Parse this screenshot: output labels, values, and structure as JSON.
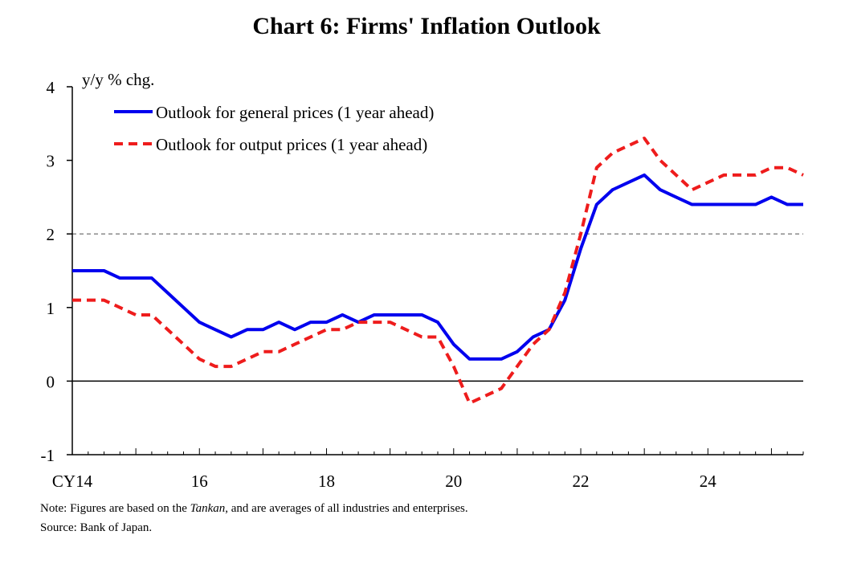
{
  "chart_data": {
    "type": "line",
    "title": "Chart 6: Firms' Inflation Outlook",
    "ylabel": "y/y % chg.",
    "xlabel": "",
    "ylim": [
      -1,
      4
    ],
    "yticks": [
      -1,
      0,
      1,
      2,
      3,
      4
    ],
    "xlim": [
      2014.0,
      2025.5
    ],
    "xticks": [
      {
        "value": 2014,
        "label": "CY14"
      },
      {
        "value": 2016,
        "label": "16"
      },
      {
        "value": 2018,
        "label": "18"
      },
      {
        "value": 2020,
        "label": "20"
      },
      {
        "value": 2022,
        "label": "22"
      },
      {
        "value": 2024,
        "label": "24"
      }
    ],
    "reference_line": {
      "value": 2,
      "style": "dashed",
      "color": "#8a8a8a"
    },
    "zero_line": {
      "value": 0
    },
    "legend_position": "top-left",
    "x": [
      2014.0,
      2014.25,
      2014.5,
      2014.75,
      2015.0,
      2015.25,
      2015.5,
      2015.75,
      2016.0,
      2016.25,
      2016.5,
      2016.75,
      2017.0,
      2017.25,
      2017.5,
      2017.75,
      2018.0,
      2018.25,
      2018.5,
      2018.75,
      2019.0,
      2019.25,
      2019.5,
      2019.75,
      2020.0,
      2020.25,
      2020.5,
      2020.75,
      2021.0,
      2021.25,
      2021.5,
      2021.75,
      2022.0,
      2022.25,
      2022.5,
      2022.75,
      2023.0,
      2023.25,
      2023.5,
      2023.75,
      2024.0,
      2024.25,
      2024.5,
      2024.75,
      2025.0,
      2025.25,
      2025.5
    ],
    "series": [
      {
        "name": "Outlook for general prices (1 year ahead)",
        "color": "#0000ee",
        "style": "solid",
        "values": [
          1.5,
          1.5,
          1.5,
          1.4,
          1.4,
          1.4,
          1.2,
          1.0,
          0.8,
          0.7,
          0.6,
          0.7,
          0.7,
          0.8,
          0.7,
          0.8,
          0.8,
          0.9,
          0.8,
          0.9,
          0.9,
          0.9,
          0.9,
          0.8,
          0.5,
          0.3,
          0.3,
          0.3,
          0.4,
          0.6,
          0.7,
          1.1,
          1.8,
          2.4,
          2.6,
          2.7,
          2.8,
          2.6,
          2.5,
          2.4,
          2.4,
          2.4,
          2.4,
          2.4,
          2.5,
          2.4,
          2.4
        ]
      },
      {
        "name": "Outlook for output prices (1 year ahead)",
        "color": "#ee1c1c",
        "style": "dashed",
        "values": [
          1.1,
          1.1,
          1.1,
          1.0,
          0.9,
          0.9,
          0.7,
          0.5,
          0.3,
          0.2,
          0.2,
          0.3,
          0.4,
          0.4,
          0.5,
          0.6,
          0.7,
          0.7,
          0.8,
          0.8,
          0.8,
          0.7,
          0.6,
          0.6,
          0.2,
          -0.3,
          -0.2,
          -0.1,
          0.2,
          0.5,
          0.7,
          1.2,
          2.0,
          2.9,
          3.1,
          3.2,
          3.3,
          3.0,
          2.8,
          2.6,
          2.7,
          2.8,
          2.8,
          2.8,
          2.9,
          2.9,
          2.8
        ]
      }
    ]
  },
  "notes": {
    "note_prefix": "Note: Figures are based on the ",
    "note_italic": "Tankan",
    "note_suffix": ", and are averages of all industries and enterprises.",
    "source": "Source: Bank of Japan."
  }
}
